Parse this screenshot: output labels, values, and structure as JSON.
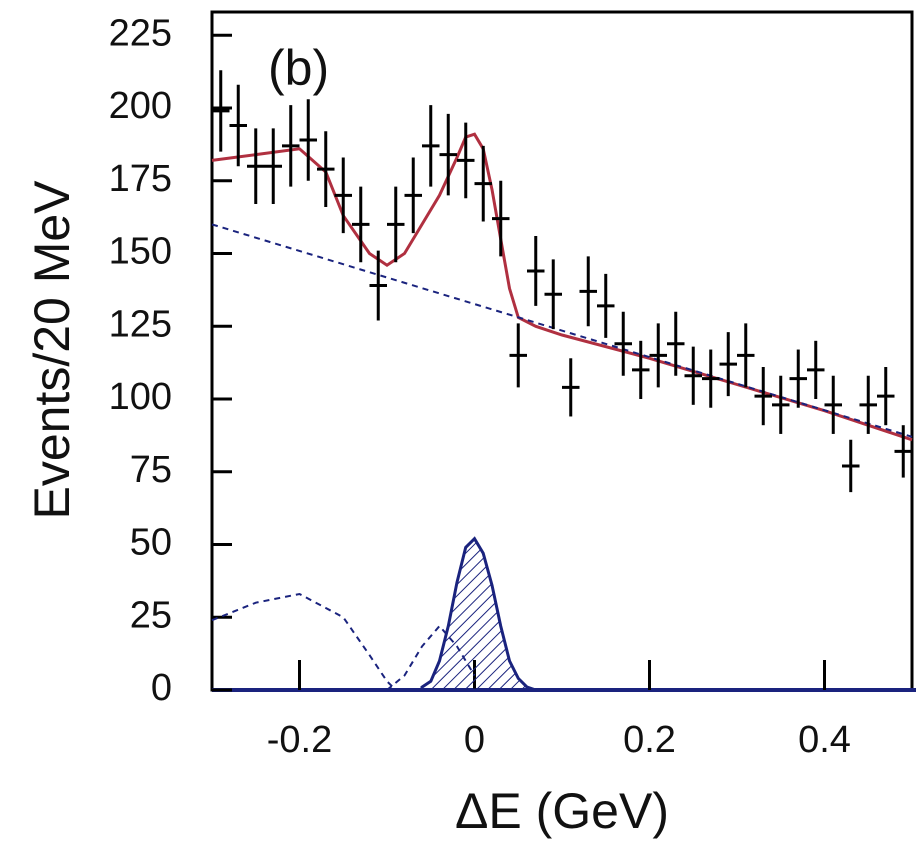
{
  "chart_data": {
    "type": "errorbar",
    "annotation": "(b)",
    "x_label": "ΔE (GeV)",
    "y_label": "Events/20 MeV",
    "xlim": [
      -0.3,
      0.5
    ],
    "ylim": [
      0,
      233
    ],
    "xticks": [
      -0.2,
      0,
      0.2,
      0.4
    ],
    "yticks": [
      0,
      25,
      50,
      75,
      100,
      125,
      150,
      175,
      200,
      225
    ],
    "points": {
      "color": "#000000",
      "x": [
        -0.29,
        -0.27,
        -0.25,
        -0.23,
        -0.21,
        -0.19,
        -0.17,
        -0.15,
        -0.13,
        -0.11,
        -0.09,
        -0.07,
        -0.05,
        -0.03,
        -0.01,
        0.01,
        0.03,
        0.05,
        0.07,
        0.09,
        0.11,
        0.13,
        0.15,
        0.17,
        0.19,
        0.21,
        0.23,
        0.25,
        0.27,
        0.29,
        0.31,
        0.33,
        0.35,
        0.37,
        0.39,
        0.41,
        0.43,
        0.45,
        0.47,
        0.49
      ],
      "values": [
        199,
        194,
        180,
        180,
        187,
        189,
        179,
        170,
        160,
        139,
        160,
        170,
        187,
        184,
        182,
        174,
        162,
        115,
        144,
        136,
        104,
        137,
        132,
        119,
        110,
        115,
        119,
        108,
        107,
        112,
        115,
        101,
        98,
        107,
        110,
        98,
        77,
        98,
        101,
        82
      ],
      "errors": [
        14,
        14,
        13,
        13,
        14,
        14,
        13,
        13,
        13,
        12,
        13,
        13,
        14,
        14,
        13,
        13,
        13,
        11,
        12,
        12,
        10,
        12,
        11,
        11,
        10,
        11,
        11,
        10,
        10,
        11,
        11,
        10,
        10,
        10,
        10,
        10,
        9,
        10,
        10,
        9
      ]
    },
    "series": [
      {
        "color": "#b03040",
        "style": "solid",
        "fill": "none",
        "x": [
          -0.3,
          -0.25,
          -0.2,
          -0.17,
          -0.15,
          -0.12,
          -0.1,
          -0.08,
          -0.06,
          -0.04,
          -0.02,
          -0.01,
          0,
          0.01,
          0.02,
          0.03,
          0.04,
          0.05,
          0.07,
          0.1,
          0.2,
          0.3,
          0.4,
          0.5
        ],
        "values": [
          182,
          184,
          186,
          178,
          163,
          150,
          146,
          150,
          160,
          170,
          183,
          190,
          191,
          186,
          172,
          155,
          138,
          128,
          125,
          122,
          114,
          105,
          96,
          86
        ]
      },
      {
        "color": "#1a237e",
        "style": "dashed",
        "fill": "none",
        "x": [
          -0.3,
          0.5
        ],
        "values": [
          160,
          87
        ]
      },
      {
        "color": "#1a237e",
        "style": "dashed",
        "fill": "none",
        "x": [
          -0.3,
          -0.25,
          -0.2,
          -0.15,
          -0.12,
          -0.1,
          -0.09
        ],
        "values": [
          24,
          30,
          33,
          25,
          12,
          3,
          0
        ]
      },
      {
        "color": "#1a237e",
        "style": "dashed",
        "fill": "none",
        "x": [
          -0.1,
          -0.08,
          -0.06,
          -0.04,
          -0.02,
          0
        ],
        "values": [
          0,
          5,
          15,
          22,
          15,
          5
        ]
      },
      {
        "color": "#1a237e",
        "style": "solid",
        "fill": "hatch",
        "x": [
          -0.06,
          -0.05,
          -0.04,
          -0.03,
          -0.02,
          -0.01,
          0,
          0.01,
          0.02,
          0.03,
          0.04,
          0.05,
          0.06,
          0.07
        ],
        "values": [
          1,
          3,
          10,
          22,
          37,
          49,
          52,
          47,
          36,
          22,
          10,
          4,
          1,
          0
        ]
      }
    ]
  }
}
